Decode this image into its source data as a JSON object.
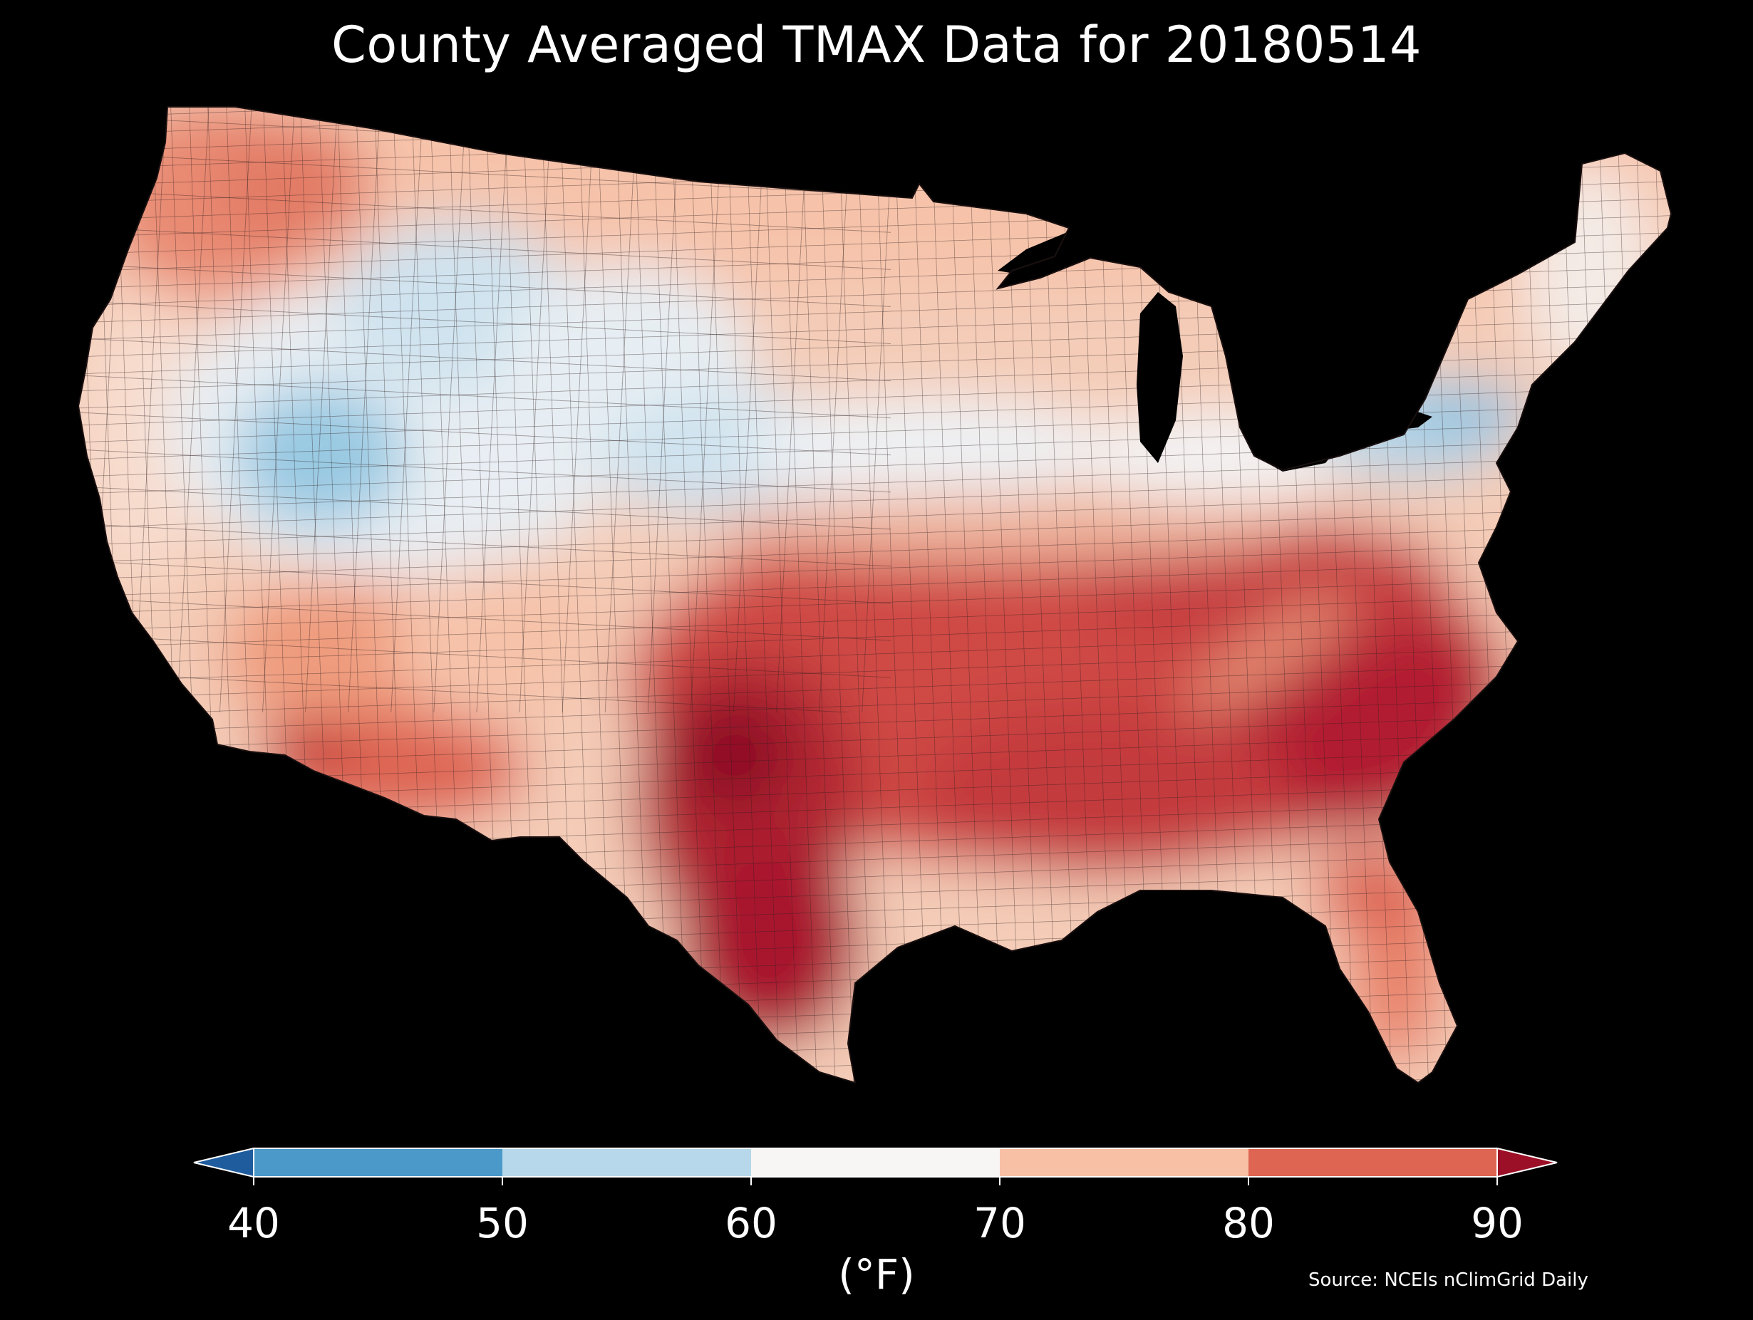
{
  "title": "County Averaged TMAX Data for 20180514",
  "colorbar": {
    "ticks": [
      "40",
      "50",
      "60",
      "70",
      "80",
      "90"
    ],
    "unit": "(°F)",
    "bins": [
      {
        "range": "<40",
        "color": "#1f5c9e"
      },
      {
        "range": "40-50",
        "color": "#4a99c9"
      },
      {
        "range": "50-60",
        "color": "#b7d8ea"
      },
      {
        "range": "60-70",
        "color": "#f7f6f5"
      },
      {
        "range": "70-80",
        "color": "#f8c0a5"
      },
      {
        "range": "80-90",
        "color": "#de6552"
      },
      {
        "range": ">90",
        "color": "#9b1026"
      }
    ]
  },
  "source": "Source: NCEIs nClimGrid Daily",
  "map": {
    "region": "Contiguous United States counties",
    "background": "#000000",
    "border_color": "#3a2a2a"
  }
}
